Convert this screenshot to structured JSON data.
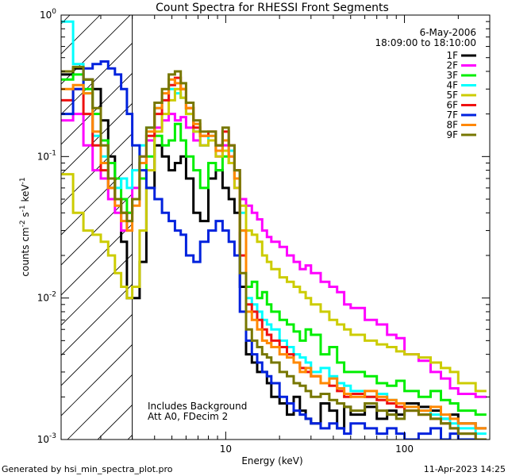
{
  "chart_data": {
    "type": "line",
    "title": "Count Spectra for RHESSI Front Segments",
    "xlabel": "Energy (keV)",
    "ylabel_main": "counts cm",
    "ylabel_sup1": "-2",
    "ylabel_mid": " s",
    "ylabel_sup2": "-1",
    "ylabel_tail": " keV",
    "ylabel_sup3": "-1",
    "x_scale": "log",
    "y_scale": "log",
    "xlim": [
      1.2,
      300
    ],
    "ylim": [
      0.001,
      1
    ],
    "x_ticks": [
      {
        "value": 10,
        "label": "10"
      },
      {
        "value": 100,
        "label": "100"
      }
    ],
    "y_ticks": [
      {
        "value": 1,
        "base": "10",
        "exp": "0"
      },
      {
        "value": 0.1,
        "base": "10",
        "exp": "-1"
      },
      {
        "value": 0.01,
        "base": "10",
        "exp": "-2"
      },
      {
        "value": 0.001,
        "base": "10",
        "exp": "-3"
      }
    ],
    "legend": {
      "position": "top-right",
      "date": "6-May-2006",
      "time_range": "18:09:00 to 18:10:00",
      "entries": [
        {
          "name": "1F",
          "color": "#000000"
        },
        {
          "name": "2F",
          "color": "#ff00ff"
        },
        {
          "name": "3F",
          "color": "#00ee00"
        },
        {
          "name": "4F",
          "color": "#00ffff"
        },
        {
          "name": "5F",
          "color": "#cccc00"
        },
        {
          "name": "6F",
          "color": "#ee1111"
        },
        {
          "name": "7F",
          "color": "#0022dd"
        },
        {
          "name": "8F",
          "color": "#ff8800"
        },
        {
          "name": "9F",
          "color": "#777700"
        }
      ]
    },
    "shaded_region_upper_energy": 3,
    "annotations": [
      "Includes Background",
      "Att A0, FDecim 2"
    ],
    "series": [
      {
        "name": "1F",
        "color": "#000000",
        "x": [
          1.2,
          1.4,
          1.6,
          1.8,
          2.0,
          2.2,
          2.4,
          2.6,
          2.8,
          3.0,
          3.3,
          3.6,
          4.0,
          4.4,
          4.8,
          5.2,
          5.6,
          6.0,
          6.6,
          7.2,
          8.0,
          8.8,
          9.6,
          10.4,
          11.2,
          12.0,
          13,
          14,
          15,
          16,
          17,
          18,
          20,
          22,
          24,
          26,
          28,
          30,
          34,
          38,
          42,
          46,
          50,
          60,
          70,
          80,
          90,
          100,
          120,
          140,
          160,
          180,
          200,
          250
        ],
        "y": [
          0.38,
          0.42,
          0.35,
          0.3,
          0.18,
          0.1,
          0.05,
          0.025,
          0.01,
          0.01,
          0.018,
          0.06,
          0.12,
          0.1,
          0.08,
          0.09,
          0.1,
          0.07,
          0.04,
          0.035,
          0.07,
          0.08,
          0.06,
          0.05,
          0.04,
          0.012,
          0.004,
          0.0035,
          0.003,
          0.003,
          0.0025,
          0.002,
          0.0018,
          0.0015,
          0.002,
          0.0016,
          0.0014,
          0.0013,
          0.0018,
          0.0016,
          0.0012,
          0.0017,
          0.0015,
          0.0017,
          0.0014,
          0.0016,
          0.0015,
          0.0018,
          0.0017,
          0.0016,
          0.0014,
          0.0015,
          0.0013,
          0.0012
        ]
      },
      {
        "name": "2F",
        "color": "#ff00ff",
        "x": [
          1.2,
          1.4,
          1.6,
          1.8,
          2.0,
          2.2,
          2.4,
          2.6,
          2.8,
          3.0,
          3.3,
          3.6,
          4.0,
          4.4,
          4.8,
          5.2,
          5.6,
          6.0,
          6.6,
          7.2,
          8.0,
          8.8,
          9.6,
          10.4,
          11.2,
          12.0,
          13,
          14,
          15,
          16,
          17,
          18,
          20,
          22,
          24,
          26,
          28,
          30,
          34,
          38,
          42,
          46,
          50,
          60,
          70,
          80,
          90,
          100,
          120,
          140,
          160,
          180,
          200,
          250
        ],
        "y": [
          0.18,
          0.2,
          0.12,
          0.08,
          0.07,
          0.05,
          0.04,
          0.03,
          0.04,
          0.06,
          0.1,
          0.13,
          0.16,
          0.18,
          0.2,
          0.18,
          0.19,
          0.16,
          0.13,
          0.12,
          0.13,
          0.1,
          0.12,
          0.1,
          0.06,
          0.05,
          0.045,
          0.04,
          0.036,
          0.03,
          0.027,
          0.025,
          0.023,
          0.02,
          0.018,
          0.016,
          0.017,
          0.015,
          0.013,
          0.012,
          0.011,
          0.009,
          0.0085,
          0.007,
          0.0065,
          0.0055,
          0.0052,
          0.004,
          0.0036,
          0.003,
          0.0027,
          0.0023,
          0.0021,
          0.002
        ]
      },
      {
        "name": "3F",
        "color": "#00ee00",
        "x": [
          1.2,
          1.4,
          1.6,
          1.8,
          2.0,
          2.2,
          2.4,
          2.6,
          2.8,
          3.0,
          3.3,
          3.6,
          4.0,
          4.4,
          4.8,
          5.2,
          5.6,
          6.0,
          6.6,
          7.2,
          8.0,
          8.8,
          9.6,
          10.4,
          11.2,
          12.0,
          13,
          14,
          15,
          16,
          17,
          18,
          20,
          22,
          24,
          26,
          28,
          30,
          34,
          38,
          42,
          46,
          50,
          60,
          70,
          80,
          90,
          100,
          120,
          140,
          160,
          180,
          200,
          250
        ],
        "y": [
          0.35,
          0.38,
          0.3,
          0.2,
          0.13,
          0.09,
          0.07,
          0.05,
          0.04,
          0.05,
          0.07,
          0.1,
          0.14,
          0.12,
          0.13,
          0.17,
          0.13,
          0.1,
          0.08,
          0.06,
          0.09,
          0.08,
          0.1,
          0.09,
          0.07,
          0.03,
          0.012,
          0.013,
          0.01,
          0.011,
          0.009,
          0.008,
          0.007,
          0.0065,
          0.0058,
          0.005,
          0.006,
          0.0055,
          0.004,
          0.0045,
          0.0035,
          0.003,
          0.003,
          0.0028,
          0.0025,
          0.0024,
          0.0026,
          0.0022,
          0.002,
          0.0022,
          0.0019,
          0.0018,
          0.0016,
          0.0015
        ]
      },
      {
        "name": "4F",
        "color": "#00ffff",
        "x": [
          1.2,
          1.4,
          1.6,
          1.8,
          2.0,
          2.2,
          2.4,
          2.6,
          2.8,
          3.0,
          3.3,
          3.6,
          4.0,
          4.4,
          4.8,
          5.2,
          5.6,
          6.0,
          6.6,
          7.2,
          8.0,
          8.8,
          9.6,
          10.4,
          11.2,
          12.0,
          13,
          14,
          15,
          16,
          17,
          18,
          20,
          22,
          24,
          26,
          28,
          30,
          34,
          38,
          42,
          46,
          50,
          60,
          70,
          80,
          90,
          100,
          120,
          140,
          160,
          180,
          200,
          250
        ],
        "y": [
          0.9,
          0.45,
          0.28,
          0.14,
          0.1,
          0.06,
          0.06,
          0.07,
          0.06,
          0.08,
          0.12,
          0.16,
          0.22,
          0.25,
          0.3,
          0.28,
          0.26,
          0.2,
          0.15,
          0.12,
          0.14,
          0.11,
          0.13,
          0.11,
          0.08,
          0.04,
          0.01,
          0.009,
          0.008,
          0.007,
          0.0065,
          0.006,
          0.005,
          0.0045,
          0.004,
          0.0038,
          0.0035,
          0.003,
          0.0032,
          0.0028,
          0.0025,
          0.0024,
          0.0022,
          0.002,
          0.0021,
          0.0019,
          0.0018,
          0.0017,
          0.0016,
          0.0015,
          0.0014,
          0.0013,
          0.0012,
          0.0011
        ]
      },
      {
        "name": "5F",
        "color": "#cccc00",
        "x": [
          1.2,
          1.4,
          1.6,
          1.8,
          2.0,
          2.2,
          2.4,
          2.6,
          2.8,
          3.0,
          3.3,
          3.6,
          4.0,
          4.4,
          4.8,
          5.2,
          5.6,
          6.0,
          6.6,
          7.2,
          8.0,
          8.8,
          9.6,
          10.4,
          11.2,
          12.0,
          13,
          14,
          15,
          16,
          17,
          18,
          20,
          22,
          24,
          26,
          28,
          30,
          34,
          38,
          42,
          46,
          50,
          60,
          70,
          80,
          90,
          100,
          120,
          140,
          160,
          180,
          200,
          250
        ],
        "y": [
          0.075,
          0.04,
          0.03,
          0.028,
          0.025,
          0.02,
          0.015,
          0.012,
          0.01,
          0.012,
          0.03,
          0.08,
          0.15,
          0.2,
          0.25,
          0.3,
          0.26,
          0.2,
          0.15,
          0.12,
          0.13,
          0.1,
          0.11,
          0.09,
          0.06,
          0.045,
          0.03,
          0.028,
          0.025,
          0.02,
          0.018,
          0.016,
          0.014,
          0.013,
          0.012,
          0.011,
          0.01,
          0.009,
          0.008,
          0.007,
          0.0065,
          0.006,
          0.0055,
          0.005,
          0.0047,
          0.0045,
          0.0042,
          0.004,
          0.0038,
          0.0035,
          0.0032,
          0.003,
          0.0025,
          0.0022
        ]
      },
      {
        "name": "6F",
        "color": "#ee1111",
        "x": [
          1.2,
          1.4,
          1.6,
          1.8,
          2.0,
          2.2,
          2.4,
          2.6,
          2.8,
          3.0,
          3.3,
          3.6,
          4.0,
          4.4,
          4.8,
          5.2,
          5.6,
          6.0,
          6.6,
          7.2,
          8.0,
          8.8,
          9.6,
          10.4,
          11.2,
          12.0,
          13,
          14,
          15,
          16,
          17,
          18,
          20,
          22,
          24,
          26,
          28,
          30,
          34,
          38,
          42,
          46,
          50,
          60,
          70,
          80,
          90,
          100,
          120,
          140,
          160,
          180,
          200,
          250
        ],
        "y": [
          0.25,
          0.3,
          0.2,
          0.12,
          0.08,
          0.06,
          0.05,
          0.04,
          0.035,
          0.05,
          0.09,
          0.14,
          0.2,
          0.25,
          0.32,
          0.36,
          0.3,
          0.22,
          0.16,
          0.14,
          0.15,
          0.12,
          0.15,
          0.12,
          0.08,
          0.02,
          0.009,
          0.008,
          0.007,
          0.006,
          0.0055,
          0.005,
          0.0045,
          0.004,
          0.0035,
          0.0032,
          0.003,
          0.0028,
          0.0025,
          0.0024,
          0.0022,
          0.002,
          0.0021,
          0.002,
          0.0019,
          0.0018,
          0.0017,
          0.0016,
          0.0015,
          0.0014,
          0.0013,
          0.0012,
          0.0011,
          0.001
        ]
      },
      {
        "name": "7F",
        "color": "#0022dd",
        "x": [
          1.2,
          1.4,
          1.6,
          1.8,
          2.0,
          2.2,
          2.4,
          2.6,
          2.8,
          3.0,
          3.3,
          3.6,
          4.0,
          4.4,
          4.8,
          5.2,
          5.6,
          6.0,
          6.6,
          7.2,
          8.0,
          8.8,
          9.6,
          10.4,
          11.2,
          12.0,
          13,
          14,
          15,
          16,
          17,
          18,
          20,
          22,
          24,
          26,
          28,
          30,
          34,
          38,
          42,
          46,
          50,
          60,
          70,
          80,
          90,
          100,
          120,
          140,
          160,
          180,
          200,
          250
        ],
        "y": [
          0.2,
          0.3,
          0.42,
          0.45,
          0.47,
          0.42,
          0.38,
          0.3,
          0.2,
          0.12,
          0.08,
          0.06,
          0.05,
          0.04,
          0.035,
          0.03,
          0.028,
          0.02,
          0.018,
          0.025,
          0.03,
          0.035,
          0.03,
          0.025,
          0.02,
          0.008,
          0.005,
          0.004,
          0.0035,
          0.003,
          0.0028,
          0.0025,
          0.002,
          0.0018,
          0.0016,
          0.0015,
          0.0014,
          0.0013,
          0.0012,
          0.0013,
          0.0012,
          0.0011,
          0.0013,
          0.0012,
          0.0011,
          0.0012,
          0.0011,
          0.001,
          0.0011,
          0.0012,
          0.001,
          0.0011,
          0.001,
          0.001
        ]
      },
      {
        "name": "8F",
        "color": "#ff8800",
        "x": [
          1.2,
          1.4,
          1.6,
          1.8,
          2.0,
          2.2,
          2.4,
          2.6,
          2.8,
          3.0,
          3.3,
          3.6,
          4.0,
          4.4,
          4.8,
          5.2,
          5.6,
          6.0,
          6.6,
          7.2,
          8.0,
          8.8,
          9.6,
          10.4,
          11.2,
          12.0,
          13,
          14,
          15,
          16,
          17,
          18,
          20,
          22,
          24,
          26,
          28,
          30,
          34,
          38,
          42,
          46,
          50,
          60,
          70,
          80,
          90,
          100,
          120,
          140,
          160,
          180,
          200,
          250
        ],
        "y": [
          0.3,
          0.32,
          0.28,
          0.15,
          0.09,
          0.06,
          0.045,
          0.035,
          0.03,
          0.045,
          0.09,
          0.15,
          0.22,
          0.28,
          0.35,
          0.33,
          0.3,
          0.22,
          0.17,
          0.14,
          0.14,
          0.11,
          0.13,
          0.1,
          0.07,
          0.03,
          0.008,
          0.007,
          0.006,
          0.005,
          0.0048,
          0.0045,
          0.004,
          0.0038,
          0.0035,
          0.003,
          0.0032,
          0.0028,
          0.0025,
          0.0027,
          0.0023,
          0.0021,
          0.002,
          0.0022,
          0.002,
          0.0019,
          0.0018,
          0.0017,
          0.0016,
          0.0017,
          0.0015,
          0.0014,
          0.0013,
          0.0012
        ]
      },
      {
        "name": "9F",
        "color": "#777700",
        "x": [
          1.2,
          1.4,
          1.6,
          1.8,
          2.0,
          2.2,
          2.4,
          2.6,
          2.8,
          3.0,
          3.3,
          3.6,
          4.0,
          4.4,
          4.8,
          5.2,
          5.6,
          6.0,
          6.6,
          7.2,
          8.0,
          8.8,
          9.6,
          10.4,
          11.2,
          12.0,
          13,
          14,
          15,
          16,
          17,
          18,
          20,
          22,
          24,
          26,
          28,
          30,
          34,
          38,
          42,
          46,
          50,
          60,
          70,
          80,
          90,
          100,
          120,
          140,
          160,
          180,
          200,
          250
        ],
        "y": [
          0.4,
          0.43,
          0.35,
          0.22,
          0.12,
          0.07,
          0.05,
          0.04,
          0.035,
          0.05,
          0.1,
          0.16,
          0.24,
          0.3,
          0.38,
          0.4,
          0.33,
          0.24,
          0.18,
          0.15,
          0.15,
          0.12,
          0.16,
          0.12,
          0.08,
          0.015,
          0.006,
          0.005,
          0.0045,
          0.004,
          0.0038,
          0.0035,
          0.003,
          0.0028,
          0.0025,
          0.0024,
          0.0022,
          0.002,
          0.0021,
          0.0019,
          0.0018,
          0.0017,
          0.0016,
          0.0018,
          0.0016,
          0.0015,
          0.0014,
          0.0016,
          0.0015,
          0.0014,
          0.0013,
          0.0012,
          0.0011,
          0.001
        ]
      }
    ]
  },
  "footer": {
    "generated_by": "Generated by hsi_min_spectra_plot.pro",
    "timestamp": "11-Apr-2023 14:25"
  }
}
